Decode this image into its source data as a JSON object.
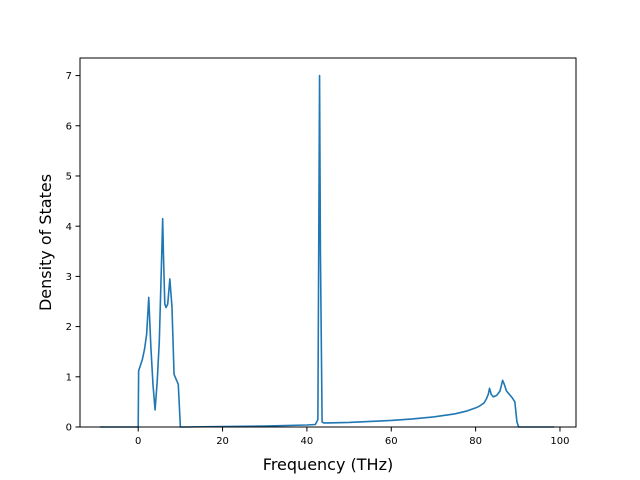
{
  "chart_data": {
    "type": "line",
    "title": "",
    "xlabel": "Frequency (THz)",
    "ylabel": "Density of States",
    "xlim": [
      -13.8,
      103.8
    ],
    "ylim": [
      0,
      7.35
    ],
    "xticks": [
      0,
      20,
      40,
      60,
      80,
      100
    ],
    "yticks": [
      0,
      1,
      2,
      3,
      4,
      5,
      6,
      7
    ],
    "grid": false,
    "legend": "none",
    "series": [
      {
        "color": "#1f77b4",
        "x": [
          -9.0,
          -5.0,
          0.0,
          0.1,
          0.5,
          1.0,
          1.5,
          2.0,
          2.5,
          3.0,
          3.5,
          4.0,
          4.5,
          5.0,
          5.5,
          5.8,
          6.0,
          6.3,
          6.6,
          7.0,
          7.5,
          8.0,
          8.5,
          9.0,
          9.5,
          10.0,
          10.5,
          11.0,
          15.0,
          20.0,
          25.0,
          30.0,
          35.0,
          40.0,
          42.0,
          42.6,
          43.0,
          43.2,
          43.6,
          44.0,
          45.0,
          50.0,
          55.0,
          60.0,
          65.0,
          70.0,
          75.0,
          78.0,
          80.0,
          81.0,
          82.0,
          82.5,
          83.0,
          83.3,
          83.7,
          84.2,
          85.0,
          85.8,
          86.4,
          86.8,
          87.3,
          88.0,
          88.7,
          89.3,
          89.8,
          90.2,
          95.0,
          98.5
        ],
        "values": [
          0.0,
          0.0,
          0.0,
          1.12,
          1.22,
          1.35,
          1.55,
          1.85,
          2.58,
          1.6,
          0.85,
          0.34,
          0.9,
          1.7,
          3.2,
          4.15,
          3.4,
          2.45,
          2.38,
          2.45,
          2.95,
          2.4,
          1.05,
          0.95,
          0.85,
          0.0,
          0.0,
          0.0,
          0.005,
          0.01,
          0.015,
          0.02,
          0.03,
          0.04,
          0.05,
          0.15,
          7.0,
          3.5,
          0.1,
          0.08,
          0.08,
          0.09,
          0.11,
          0.13,
          0.16,
          0.2,
          0.26,
          0.32,
          0.38,
          0.42,
          0.48,
          0.55,
          0.65,
          0.77,
          0.65,
          0.6,
          0.63,
          0.72,
          0.93,
          0.85,
          0.72,
          0.65,
          0.58,
          0.5,
          0.1,
          0.0,
          0.0,
          0.0
        ]
      }
    ]
  }
}
